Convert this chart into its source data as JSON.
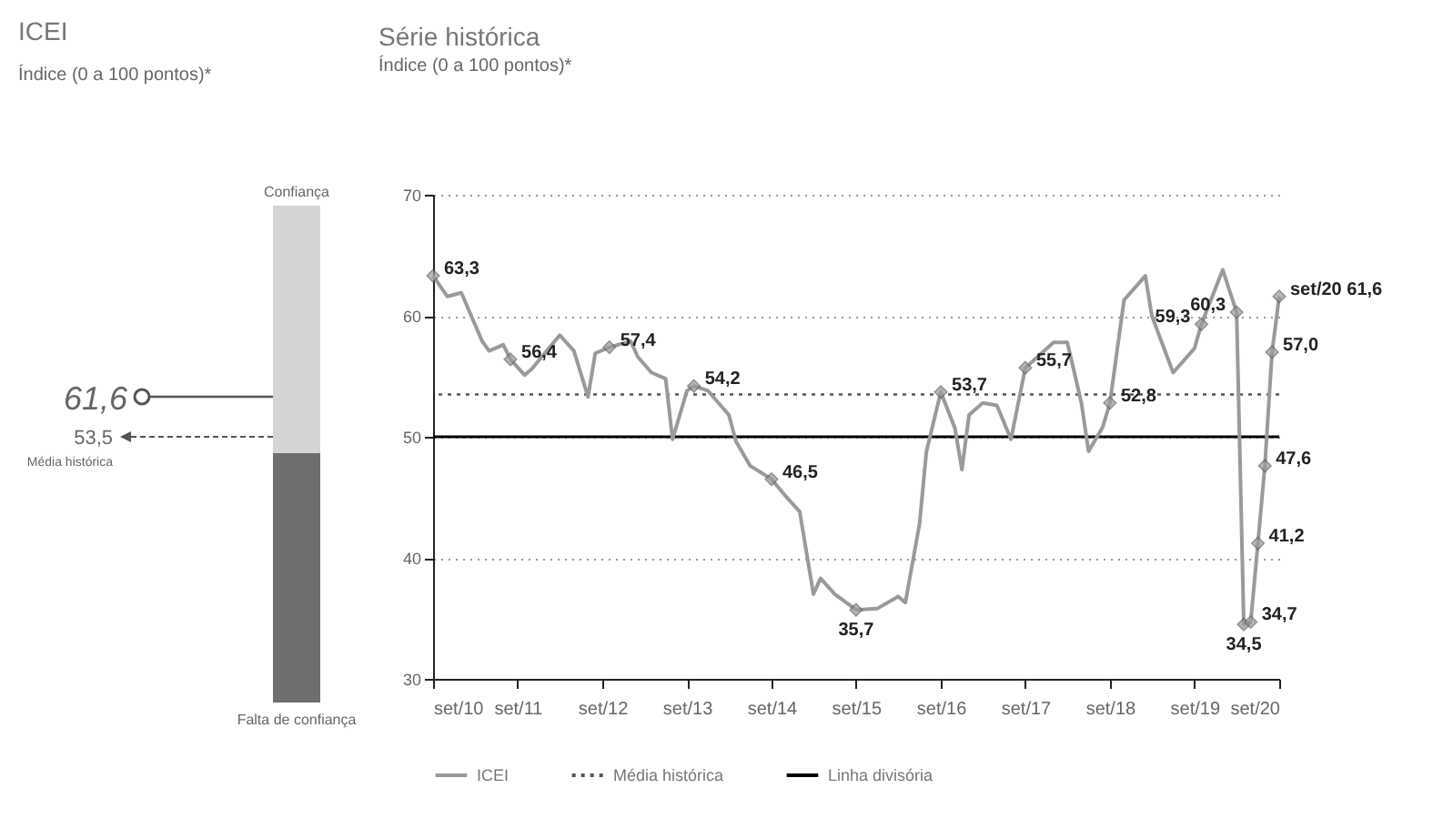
{
  "chart_data": [
    {
      "type": "other",
      "title": "ICEI",
      "subtitle": "Índice (0 a 100 pontos)*",
      "annotations": [
        "61,6",
        "53,5",
        "Média histórica",
        "Confiança",
        "Falta de confiança"
      ]
    },
    {
      "type": "line",
      "title": "Série histórica",
      "subtitle": "Índice (0 a 100 pontos)*",
      "x": [
        "2010-09",
        "2010-11",
        "2011-01",
        "2011-04",
        "2011-05",
        "2011-07",
        "2011-08",
        "2011-10",
        "2011-11",
        "2012-03",
        "2012-05",
        "2012-07",
        "2012-08",
        "2012-10",
        "2013-01",
        "2013-02",
        "2013-04",
        "2013-06",
        "2013-07",
        "2013-09",
        "2013-10",
        "2013-12",
        "2014-03",
        "2014-04",
        "2014-06",
        "2014-09",
        "2014-11",
        "2015-01",
        "2015-03",
        "2015-04",
        "2015-06",
        "2015-09",
        "2015-12",
        "2016-03",
        "2016-04",
        "2016-06",
        "2016-07",
        "2016-09",
        "2016-11",
        "2016-12",
        "2017-01",
        "2017-03",
        "2017-05",
        "2017-07",
        "2017-09",
        "2018-01",
        "2018-03",
        "2018-05",
        "2018-06",
        "2018-08",
        "2018-09",
        "2018-11",
        "2019-02",
        "2019-03",
        "2019-06",
        "2019-09",
        "2019-10",
        "2020-01",
        "2020-03",
        "2020-04",
        "2020-05",
        "2020-06",
        "2020-07",
        "2020-08",
        "2020-09"
      ],
      "series": [
        {
          "name": "ICEI",
          "color": "#9a9a9a",
          "values": [
            63.3,
            61.6,
            61.9,
            57.9,
            57.1,
            57.6,
            56.4,
            55.1,
            55.6,
            58.4,
            57.1,
            53.3,
            56.9,
            57.4,
            57.9,
            56.6,
            55.3,
            54.8,
            49.8,
            53.8,
            54.2,
            53.8,
            51.8,
            49.6,
            47.6,
            46.5,
            45.1,
            43.8,
            37.0,
            38.3,
            37.0,
            35.7,
            35.8,
            36.8,
            36.3,
            42.8,
            48.8,
            53.7,
            50.7,
            47.3,
            51.8,
            52.8,
            52.6,
            49.8,
            55.7,
            57.8,
            57.8,
            52.8,
            48.8,
            50.8,
            52.8,
            61.3,
            63.3,
            60.0,
            55.3,
            57.3,
            59.3,
            63.8,
            60.3,
            34.5,
            34.7,
            41.2,
            47.6,
            57.0,
            61.6
          ],
          "value_labels": [
            "63,3",
            null,
            null,
            null,
            null,
            null,
            "56,4",
            null,
            null,
            null,
            null,
            null,
            null,
            "57,4",
            null,
            null,
            null,
            null,
            null,
            null,
            "54,2",
            null,
            null,
            null,
            null,
            "46,5",
            null,
            null,
            null,
            null,
            null,
            "35,7",
            null,
            null,
            null,
            null,
            null,
            "53,7",
            null,
            null,
            null,
            null,
            null,
            null,
            "55,7",
            null,
            null,
            null,
            null,
            null,
            "52,8",
            null,
            null,
            null,
            null,
            null,
            "59,3",
            null,
            "60,3",
            "34,5",
            "34,7",
            "41,2",
            "47,6",
            "57,0",
            "set/20 61,6"
          ]
        }
      ],
      "ylim": [
        30,
        70
      ],
      "yticks": [
        30,
        40,
        50,
        60,
        70
      ],
      "xlim": [
        "2010-09",
        "2020-09"
      ],
      "xticks": [
        {
          "value": "2010-09",
          "label": "set/10"
        },
        {
          "value": "2011-09",
          "label": "set/11"
        },
        {
          "value": "2012-09",
          "label": "set/12"
        },
        {
          "value": "2013-09",
          "label": "set/13"
        },
        {
          "value": "2014-09",
          "label": "set/14"
        },
        {
          "value": "2015-09",
          "label": "set/15"
        },
        {
          "value": "2016-09",
          "label": "set/16"
        },
        {
          "value": "2017-09",
          "label": "set/17"
        },
        {
          "value": "2018-09",
          "label": "set/18"
        },
        {
          "value": "2019-09",
          "label": "set/19"
        },
        {
          "value": "2020-09",
          "label": "set/20"
        }
      ],
      "ref_lines": [
        {
          "axis": "y",
          "value": 53.5,
          "label": "Média histórica",
          "color": "#555555",
          "line_style": "dotted"
        },
        {
          "axis": "y",
          "value": 50,
          "label": "Linha divisória",
          "color": "#000000",
          "line_style": "solid"
        }
      ],
      "grid": "y",
      "legend": "bottom",
      "line_style": "solid"
    }
  ]
}
